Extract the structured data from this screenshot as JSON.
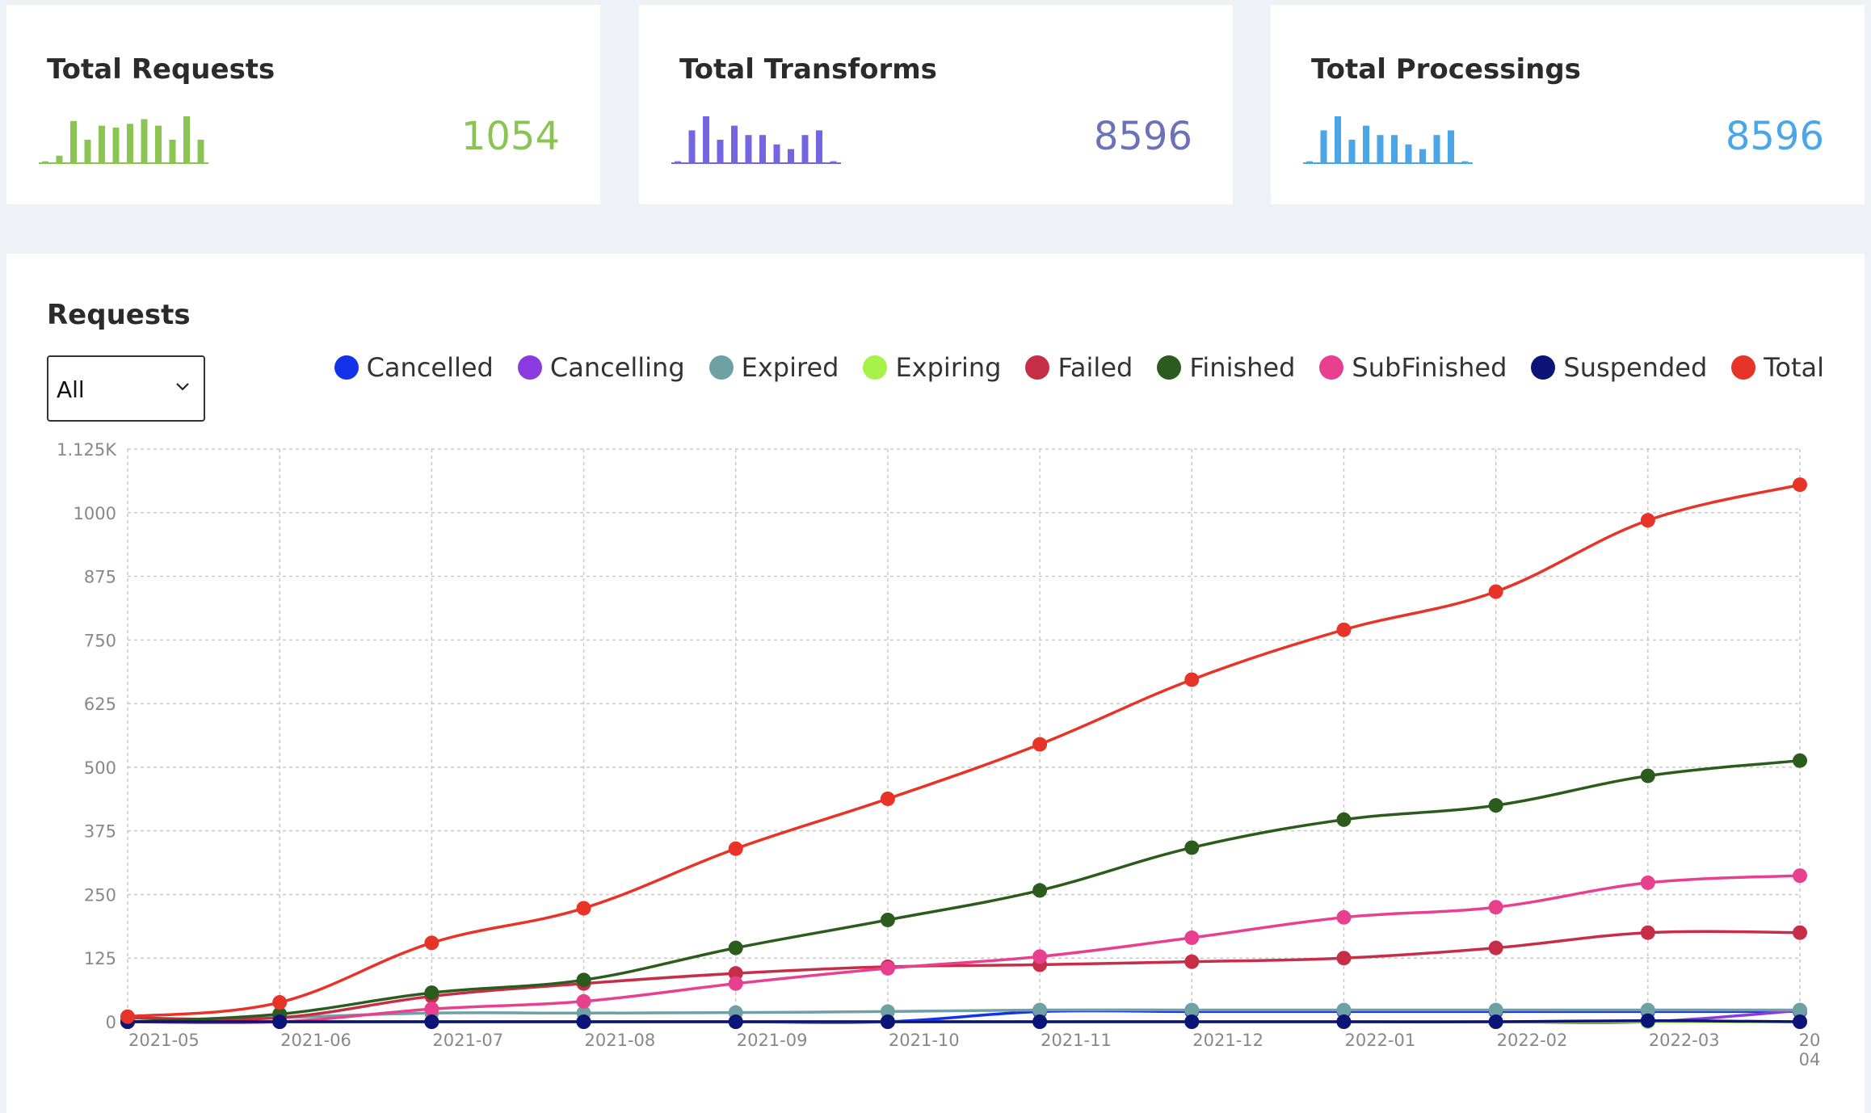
{
  "cards": [
    {
      "title": "Total Requests",
      "value": "1054",
      "color": "#8ac554",
      "spark": [
        2,
        8,
        45,
        25,
        40,
        38,
        42,
        47,
        40,
        25,
        50,
        25
      ]
    },
    {
      "title": "Total Transforms",
      "value": "8596",
      "color": "#7366e0",
      "spark": [
        2,
        35,
        50,
        25,
        40,
        30,
        30,
        20,
        15,
        30,
        35,
        2
      ]
    },
    {
      "title": "Total Processings",
      "value": "8596",
      "color": "#4aa6e6",
      "spark": [
        2,
        35,
        50,
        25,
        40,
        30,
        30,
        20,
        15,
        30,
        35,
        2
      ]
    }
  ],
  "panel": {
    "title": "Requests",
    "select": {
      "selected": "All"
    }
  },
  "chart_data": {
    "type": "line",
    "x": [
      "2021-05",
      "2021-06",
      "2021-07",
      "2021-08",
      "2021-09",
      "2021-10",
      "2021-11",
      "2021-12",
      "2022-01",
      "2022-02",
      "2022-03",
      "2022-04"
    ],
    "x_tick_labels": [
      "2021-05",
      "2021-06",
      "2021-07",
      "2021-08",
      "2021-09",
      "2021-10",
      "2021-11",
      "2021-12",
      "2022-01",
      "2022-02",
      "2022-03",
      "20 04"
    ],
    "ylim": [
      0,
      1125
    ],
    "y_ticks": [
      0,
      125,
      250,
      375,
      500,
      625,
      750,
      875,
      1000,
      1125
    ],
    "y_tick_labels": [
      "0",
      "125",
      "250",
      "375",
      "500",
      "625",
      "750",
      "875",
      "1000",
      "1.125K"
    ],
    "grid": true,
    "legend_position": "top-right",
    "series": [
      {
        "name": "Cancelled",
        "color": "#1433e8",
        "values": [
          0,
          0,
          0,
          0,
          0,
          0,
          20,
          20,
          20,
          20,
          20,
          20
        ]
      },
      {
        "name": "Cancelling",
        "color": "#8a3be0",
        "values": [
          0,
          0,
          0,
          0,
          0,
          0,
          0,
          0,
          0,
          0,
          0,
          22
        ]
      },
      {
        "name": "Expired",
        "color": "#6fa0a3",
        "values": [
          0,
          8,
          17,
          17,
          18,
          20,
          23,
          23,
          23,
          23,
          23,
          23
        ]
      },
      {
        "name": "Expiring",
        "color": "#a6f24a",
        "values": [
          0,
          0,
          0,
          0,
          0,
          0,
          0,
          0,
          0,
          0,
          0,
          0
        ]
      },
      {
        "name": "Failed",
        "color": "#c62e48",
        "values": [
          8,
          8,
          50,
          75,
          95,
          108,
          112,
          118,
          125,
          145,
          175,
          175
        ]
      },
      {
        "name": "Finished",
        "color": "#2b5c1d",
        "values": [
          0,
          15,
          57,
          82,
          145,
          200,
          258,
          342,
          397,
          425,
          483,
          513
        ]
      },
      {
        "name": "SubFinished",
        "color": "#e8408f",
        "values": [
          0,
          0,
          25,
          40,
          75,
          105,
          128,
          165,
          205,
          225,
          273,
          287
        ]
      },
      {
        "name": "Suspended",
        "color": "#0d1478",
        "values": [
          0,
          0,
          0,
          0,
          0,
          0,
          0,
          0,
          0,
          0,
          2,
          0
        ]
      },
      {
        "name": "Total",
        "color": "#e83328",
        "values": [
          10,
          38,
          155,
          223,
          340,
          438,
          545,
          672,
          770,
          845,
          985,
          1055
        ]
      }
    ]
  }
}
